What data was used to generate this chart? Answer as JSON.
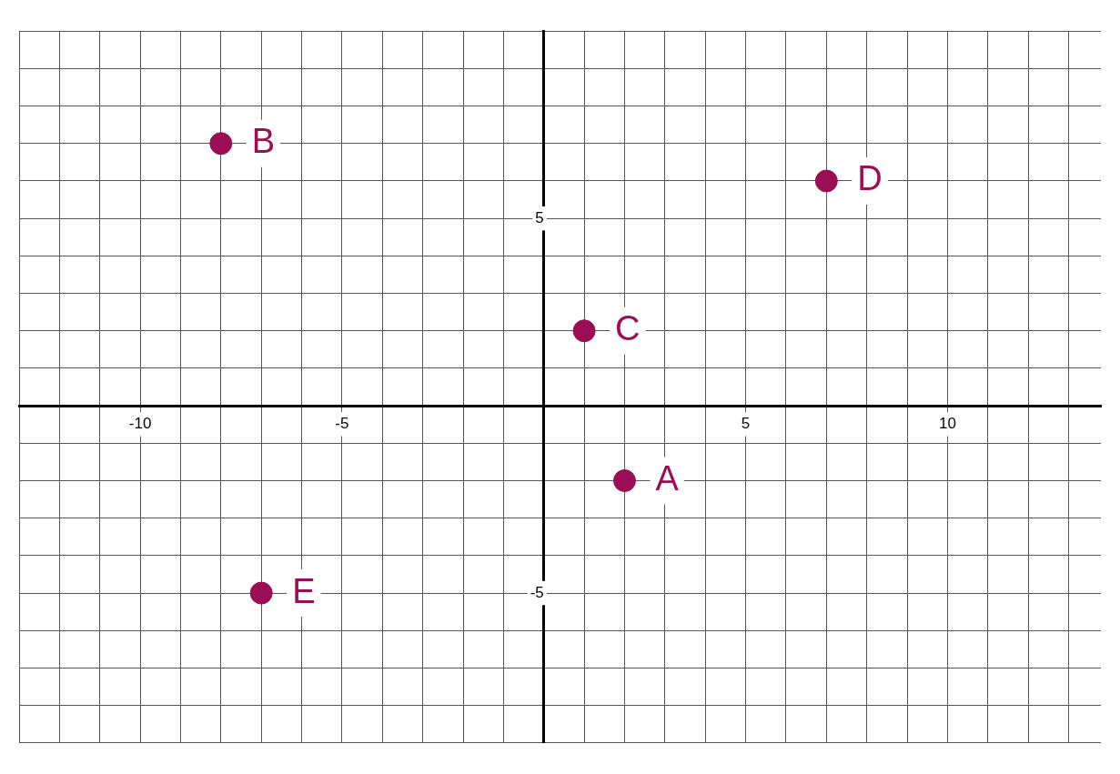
{
  "chart_data": {
    "type": "scatter",
    "x": [
      2,
      -8,
      1,
      7,
      -7
    ],
    "values": [
      -2,
      7,
      2,
      6,
      -5
    ],
    "color": "#9b0d54",
    "marker": "circle",
    "grid": true,
    "xlim": [
      -13,
      13.8
    ],
    "ylim": [
      -9,
      10
    ],
    "xticks": [
      {
        "value": -13,
        "label": null
      },
      {
        "value": -12,
        "label": null
      },
      {
        "value": -11,
        "label": null
      },
      -10,
      {
        "value": -9,
        "label": null
      },
      {
        "value": -8,
        "label": null
      },
      {
        "value": -7,
        "label": null
      },
      {
        "value": -6,
        "label": null
      },
      -5,
      {
        "value": -4,
        "label": null
      },
      {
        "value": -3,
        "label": null
      },
      {
        "value": -2,
        "label": null
      },
      {
        "value": -1,
        "label": null
      },
      {
        "value": 0,
        "label": null
      },
      {
        "value": 1,
        "label": null
      },
      {
        "value": 2,
        "label": null
      },
      {
        "value": 3,
        "label": null
      },
      {
        "value": 4,
        "label": null
      },
      5,
      {
        "value": 6,
        "label": null
      },
      {
        "value": 7,
        "label": null
      },
      {
        "value": 8,
        "label": null
      },
      {
        "value": 9,
        "label": null
      },
      10,
      {
        "value": 11,
        "label": null
      },
      {
        "value": 12,
        "label": null
      },
      {
        "value": 13,
        "label": null
      }
    ],
    "yticks": [
      {
        "value": -9,
        "label": null
      },
      {
        "value": -8,
        "label": null
      },
      {
        "value": -7,
        "label": null
      },
      {
        "value": -6,
        "label": null
      },
      -5,
      {
        "value": -4,
        "label": null
      },
      {
        "value": -3,
        "label": null
      },
      {
        "value": -2,
        "label": null
      },
      {
        "value": -1,
        "label": null
      },
      {
        "value": 0,
        "label": null
      },
      {
        "value": 1,
        "label": null
      },
      {
        "value": 2,
        "label": null
      },
      {
        "value": 3,
        "label": null
      },
      {
        "value": 4,
        "label": null
      },
      5,
      {
        "value": 6,
        "label": null
      },
      {
        "value": 7,
        "label": null
      },
      {
        "value": 8,
        "label": null
      },
      {
        "value": 9,
        "label": null
      },
      {
        "value": 10,
        "label": null
      }
    ],
    "annotations": [
      {
        "text": "A",
        "x": 2,
        "y": -2
      },
      {
        "text": "B",
        "x": -8,
        "y": 7
      },
      {
        "text": "C",
        "x": 1,
        "y": 2
      },
      {
        "text": "D",
        "x": 7,
        "y": 6
      },
      {
        "text": "E",
        "x": -7,
        "y": -5
      }
    ]
  }
}
